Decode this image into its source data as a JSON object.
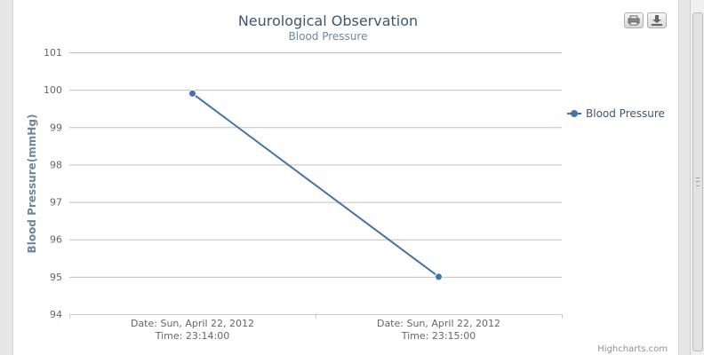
{
  "chart_data": {
    "type": "line",
    "title": "Neurological Observation",
    "subtitle": "Blood Pressure",
    "ylabel": "Blood Pressure(mmHg)",
    "xlabel": "",
    "ylim": [
      94,
      101
    ],
    "yticks": [
      94,
      95,
      96,
      97,
      98,
      99,
      100,
      101
    ],
    "categories": [
      [
        "Date: Sun, April 22, 2012",
        "Time: 23:14:00"
      ],
      [
        "Date: Sun, April 22, 2012",
        "Time: 23:15:00"
      ]
    ],
    "series": [
      {
        "name": "Blood Pressure",
        "values": [
          99.9,
          95.0
        ],
        "color": "#4572a7"
      }
    ],
    "grid": true,
    "legend": "right"
  },
  "toolbar": {
    "print_icon": "printer-icon",
    "export_icon": "download-icon"
  },
  "credits": "Highcharts.com"
}
